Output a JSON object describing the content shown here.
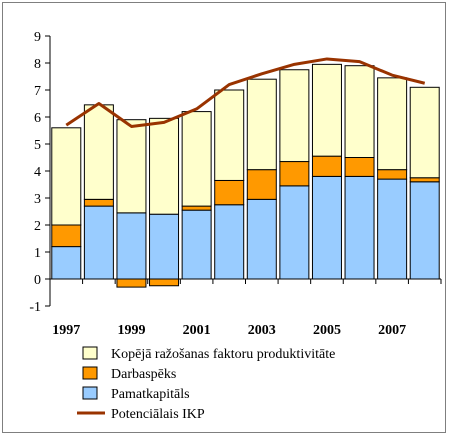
{
  "chart_data": {
    "type": "bar",
    "stacked": true,
    "x": [
      1997,
      1998,
      1999,
      2000,
      2001,
      2002,
      2003,
      2004,
      2005,
      2006,
      2007,
      2008
    ],
    "x_tick_labels": [
      "1997",
      "1999",
      "2001",
      "2003",
      "2005",
      "2007"
    ],
    "ylim": [
      -1,
      9
    ],
    "y_ticks": [
      -1,
      0,
      1,
      2,
      3,
      4,
      5,
      6,
      7,
      8,
      9
    ],
    "grid": false,
    "legend_position": "bottom",
    "series": [
      {
        "name": "Kopējā ražošanas faktoru produktivitāte",
        "kind": "bar",
        "color": "#ffffcc",
        "values": [
          3.6,
          3.5,
          3.45,
          3.55,
          3.5,
          3.35,
          3.35,
          3.4,
          3.4,
          3.4,
          3.4,
          3.35
        ]
      },
      {
        "name": "Darbaspēks",
        "kind": "bar",
        "color": "#ff9900",
        "values": [
          0.8,
          0.25,
          -0.3,
          -0.25,
          0.15,
          0.9,
          1.1,
          0.9,
          0.75,
          0.7,
          0.35,
          0.15
        ]
      },
      {
        "name": "Pamatkapitāls",
        "kind": "bar",
        "color": "#99ccff",
        "values": [
          1.2,
          2.7,
          2.45,
          2.4,
          2.55,
          2.75,
          2.95,
          3.45,
          3.8,
          3.8,
          3.7,
          3.6
        ]
      },
      {
        "name": "Potenciālais IKP",
        "kind": "line",
        "color": "#993300",
        "values": [
          5.7,
          6.5,
          5.65,
          5.8,
          6.3,
          7.2,
          7.6,
          7.95,
          8.15,
          8.05,
          7.55,
          7.25
        ]
      }
    ]
  }
}
